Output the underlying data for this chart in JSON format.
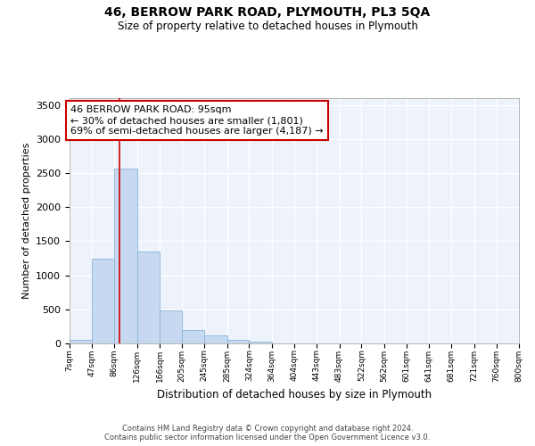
{
  "title1": "46, BERROW PARK ROAD, PLYMOUTH, PL3 5QA",
  "title2": "Size of property relative to detached houses in Plymouth",
  "xlabel": "Distribution of detached houses by size in Plymouth",
  "ylabel": "Number of detached properties",
  "bin_edges": [
    7,
    47,
    86,
    126,
    166,
    205,
    245,
    285,
    324,
    364,
    404,
    443,
    483,
    522,
    562,
    601,
    641,
    681,
    721,
    760,
    800
  ],
  "bar_heights": [
    50,
    1250,
    2570,
    1350,
    490,
    200,
    115,
    55,
    20,
    5,
    2,
    1,
    1,
    0,
    0,
    0,
    0,
    0,
    0,
    0
  ],
  "bar_color": "#c6d9f0",
  "bar_edgecolor": "#8ab4d8",
  "property_size": 95,
  "red_line_color": "#cc0000",
  "annotation_line1": "46 BERROW PARK ROAD: 95sqm",
  "annotation_line2": "← 30% of detached houses are smaller (1,801)",
  "annotation_line3": "69% of semi-detached houses are larger (4,187) →",
  "annotation_box_edgecolor": "#cc0000",
  "ylim": [
    0,
    3600
  ],
  "yticks": [
    0,
    500,
    1000,
    1500,
    2000,
    2500,
    3000,
    3500
  ],
  "footer1": "Contains HM Land Registry data © Crown copyright and database right 2024.",
  "footer2": "Contains public sector information licensed under the Open Government Licence v3.0.",
  "bg_color": "#edf2fb",
  "grid_color": "#ffffff",
  "tick_labels": [
    "7sqm",
    "47sqm",
    "86sqm",
    "126sqm",
    "166sqm",
    "205sqm",
    "245sqm",
    "285sqm",
    "324sqm",
    "364sqm",
    "404sqm",
    "443sqm",
    "483sqm",
    "522sqm",
    "562sqm",
    "601sqm",
    "641sqm",
    "681sqm",
    "721sqm",
    "760sqm",
    "800sqm"
  ]
}
